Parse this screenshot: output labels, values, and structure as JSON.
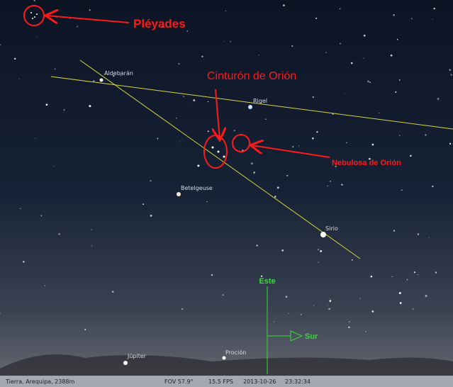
{
  "annotations": {
    "pleyades": "Pléyades",
    "cinturon": "Cinturón de Orión",
    "nebulosa": "Nebulosa de Orión"
  },
  "objects": [
    "Aldebarán",
    "Rigel",
    "Betelgeuse",
    "Sirio",
    "Júpiter",
    "Proción"
  ],
  "compass": {
    "up": "Este",
    "right": "Sur"
  },
  "status_bar": {
    "location": "Tierra, Arequipa, 2388m",
    "fov": "FOV 57.9°",
    "fps": "15.5 FPS",
    "date": "2013-10-26",
    "time": "23:32:34"
  }
}
